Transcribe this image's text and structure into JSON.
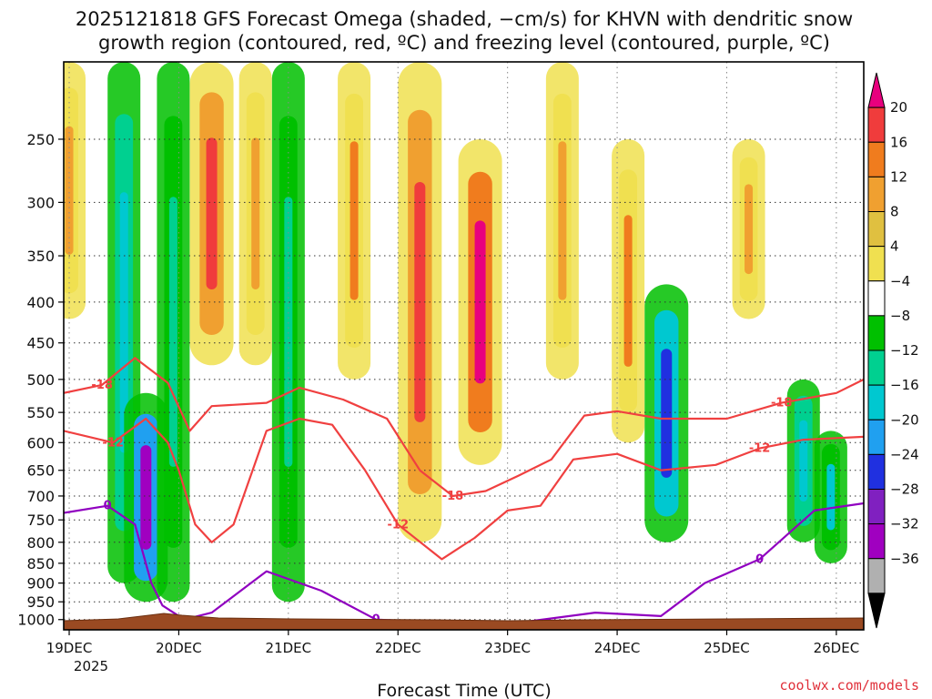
{
  "chart_data": {
    "type": "heatmap",
    "title_line1": "2025121818 GFS Forecast Omega (shaded, −cm/s) for KHVN with dendritic snow",
    "title_line2": "growth region (contoured, red, ºC) and freezing level (contoured, purple, ºC)",
    "xlabel": "Forecast Time (UTC)",
    "year_label": "2025",
    "credit": "coolwx.com/models",
    "x_range_days": [
      -0.05,
      7.25
    ],
    "y_range_hpa": [
      1030,
      200
    ],
    "x_ticks": [
      {
        "day": 0,
        "label": "19DEC"
      },
      {
        "day": 1,
        "label": "20DEC"
      },
      {
        "day": 2,
        "label": "21DEC"
      },
      {
        "day": 3,
        "label": "22DEC"
      },
      {
        "day": 4,
        "label": "23DEC"
      },
      {
        "day": 5,
        "label": "24DEC"
      },
      {
        "day": 6,
        "label": "25DEC"
      },
      {
        "day": 7,
        "label": "26DEC"
      }
    ],
    "y_ticks": [
      {
        "p": 250,
        "label": "250"
      },
      {
        "p": 300,
        "label": "300"
      },
      {
        "p": 350,
        "label": "350"
      },
      {
        "p": 400,
        "label": "400"
      },
      {
        "p": 450,
        "label": "450"
      },
      {
        "p": 500,
        "label": "500"
      },
      {
        "p": 550,
        "label": "550"
      },
      {
        "p": 600,
        "label": "600"
      },
      {
        "p": 650,
        "label": "650"
      },
      {
        "p": 700,
        "label": "700"
      },
      {
        "p": 750,
        "label": "750"
      },
      {
        "p": 800,
        "label": "800"
      },
      {
        "p": 850,
        "label": "850"
      },
      {
        "p": 900,
        "label": "900"
      },
      {
        "p": 950,
        "label": "950"
      },
      {
        "p": 1000,
        "label": "1000"
      }
    ],
    "colorbar": {
      "labels": [
        "20",
        "16",
        "12",
        "8",
        "4",
        "−4",
        "−8",
        "−12",
        "−16",
        "−20",
        "−24",
        "−28",
        "−32",
        "−36"
      ],
      "colors": [
        "#e8007e",
        "#f03c3c",
        "#f07c1e",
        "#f0a030",
        "#e0c040",
        "#f0e050",
        "#ffffff",
        "#00c000",
        "#00d090",
        "#00c8d0",
        "#20a0f0",
        "#2030e0",
        "#8020c0",
        "#a000c0",
        "#b0b0b0",
        "#000000"
      ]
    },
    "omega_features": [
      {
        "day": 0.0,
        "p_top": 200,
        "p_bot": 420,
        "value": 8
      },
      {
        "day": 0.5,
        "p_top": 200,
        "p_bot": 900,
        "value": -14
      },
      {
        "day": 0.7,
        "p_top": 520,
        "p_bot": 950,
        "value": -30
      },
      {
        "day": 0.95,
        "p_top": 200,
        "p_bot": 950,
        "value": -10
      },
      {
        "day": 1.3,
        "p_top": 200,
        "p_bot": 480,
        "value": 18
      },
      {
        "day": 1.7,
        "p_top": 200,
        "p_bot": 480,
        "value": 10
      },
      {
        "day": 2.0,
        "p_top": 200,
        "p_bot": 950,
        "value": -8
      },
      {
        "day": 2.6,
        "p_top": 200,
        "p_bot": 500,
        "value": 12
      },
      {
        "day": 3.2,
        "p_top": 200,
        "p_bot": 800,
        "value": 16
      },
      {
        "day": 3.75,
        "p_top": 250,
        "p_bot": 640,
        "value": 20
      },
      {
        "day": 4.5,
        "p_top": 200,
        "p_bot": 500,
        "value": 10
      },
      {
        "day": 5.1,
        "p_top": 250,
        "p_bot": 600,
        "value": 12
      },
      {
        "day": 5.45,
        "p_top": 380,
        "p_bot": 800,
        "value": -20
      },
      {
        "day": 6.2,
        "p_top": 250,
        "p_bot": 420,
        "value": 8
      },
      {
        "day": 6.7,
        "p_top": 500,
        "p_bot": 800,
        "value": -14
      },
      {
        "day": 6.95,
        "p_top": 580,
        "p_bot": 850,
        "value": -12
      }
    ],
    "contours": [
      {
        "label": "-18",
        "color": "#f04040",
        "points": [
          [
            -0.05,
            520
          ],
          [
            0.3,
            508
          ],
          [
            0.6,
            470
          ],
          [
            0.9,
            505
          ],
          [
            1.1,
            580
          ],
          [
            1.3,
            540
          ],
          [
            1.8,
            535
          ],
          [
            2.1,
            512
          ],
          [
            2.5,
            530
          ],
          [
            2.9,
            560
          ],
          [
            3.2,
            650
          ],
          [
            3.5,
            700
          ],
          [
            3.8,
            690
          ],
          [
            4.1,
            660
          ],
          [
            4.4,
            630
          ],
          [
            4.7,
            555
          ],
          [
            5.0,
            548
          ],
          [
            5.4,
            560
          ],
          [
            6.0,
            560
          ],
          [
            6.5,
            535
          ],
          [
            7.0,
            520
          ],
          [
            7.25,
            500
          ]
        ]
      },
      {
        "label": "-12",
        "color": "#f04040",
        "points": [
          [
            -0.05,
            580
          ],
          [
            0.4,
            600
          ],
          [
            0.7,
            560
          ],
          [
            0.9,
            600
          ],
          [
            1.0,
            650
          ],
          [
            1.15,
            760
          ],
          [
            1.3,
            800
          ],
          [
            1.5,
            760
          ],
          [
            1.8,
            580
          ],
          [
            2.1,
            560
          ],
          [
            2.4,
            570
          ],
          [
            2.7,
            650
          ],
          [
            3.0,
            760
          ],
          [
            3.4,
            840
          ],
          [
            3.7,
            790
          ],
          [
            4.0,
            730
          ],
          [
            4.3,
            720
          ],
          [
            4.6,
            630
          ],
          [
            5.0,
            620
          ],
          [
            5.4,
            650
          ],
          [
            5.9,
            640
          ],
          [
            6.3,
            610
          ],
          [
            6.7,
            595
          ],
          [
            7.25,
            590
          ]
        ]
      },
      {
        "label": "0",
        "color": "#9000c0",
        "points": [
          [
            -0.05,
            735
          ],
          [
            0.35,
            720
          ],
          [
            0.6,
            760
          ],
          [
            0.75,
            900
          ],
          [
            0.85,
            960
          ],
          [
            1.05,
            1000
          ],
          [
            1.3,
            980
          ],
          [
            1.8,
            870
          ],
          [
            2.3,
            920
          ],
          [
            2.8,
            1000
          ],
          [
            3.5,
            1010
          ],
          [
            4.2,
            1005
          ],
          [
            4.8,
            980
          ],
          [
            5.4,
            990
          ],
          [
            5.8,
            900
          ],
          [
            6.3,
            840
          ],
          [
            6.8,
            730
          ],
          [
            7.25,
            715
          ]
        ]
      }
    ]
  }
}
